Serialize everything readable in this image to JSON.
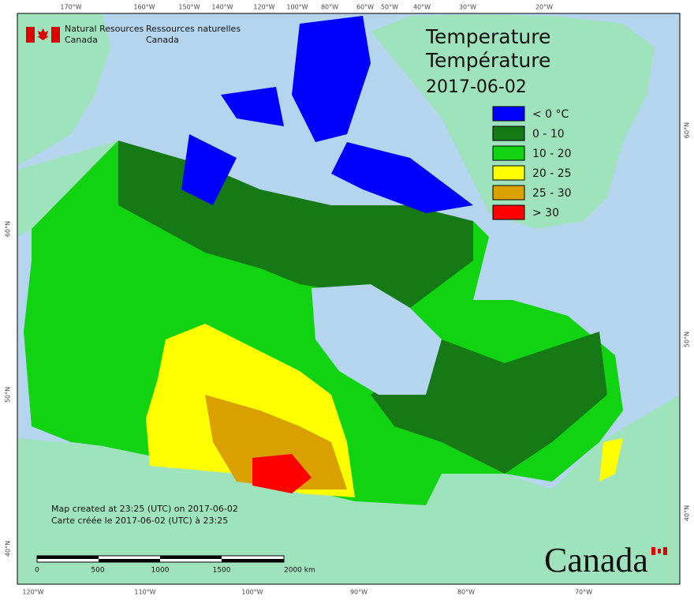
{
  "agency": {
    "en_line1": "Natural Resources",
    "en_line2": "Canada",
    "fr_line1": "Ressources naturelles",
    "fr_line2": "Canada"
  },
  "title": {
    "en": "Temperature",
    "fr": "Température",
    "date": "2017-06-02"
  },
  "legend": [
    {
      "label": "< 0 °C",
      "color": "#0000ff"
    },
    {
      "label": "0 - 10",
      "color": "#157a15"
    },
    {
      "label": "10 - 20",
      "color": "#12d312"
    },
    {
      "label": "20 - 25",
      "color": "#ffff00"
    },
    {
      "label": "25 - 30",
      "color": "#daa000"
    },
    {
      "label": "> 30",
      "color": "#ff0000"
    }
  ],
  "graticule": {
    "top": [
      "170°W",
      "160°W",
      "150°W",
      "140°W",
      "120°W",
      "100°W",
      "80°W",
      "60°W",
      "50°W",
      "40°W",
      "30°W",
      "20°W"
    ],
    "bottom": [
      "120°W",
      "110°W",
      "100°W",
      "90°W",
      "80°W",
      "70°W"
    ],
    "left": [
      "60°N",
      "50°N",
      "40°N"
    ],
    "right": [
      "60°N",
      "50°N",
      "40°N"
    ]
  },
  "footer": {
    "line1": "Map created at 23:25 (UTC) on 2017-06-02",
    "line2": "Carte créée le 2017-06-02 (UTC) à 23:25"
  },
  "scale_bar": {
    "labels": [
      "0",
      "500",
      "1000",
      "1500",
      "2000 km"
    ]
  },
  "wordmark": "Canada"
}
